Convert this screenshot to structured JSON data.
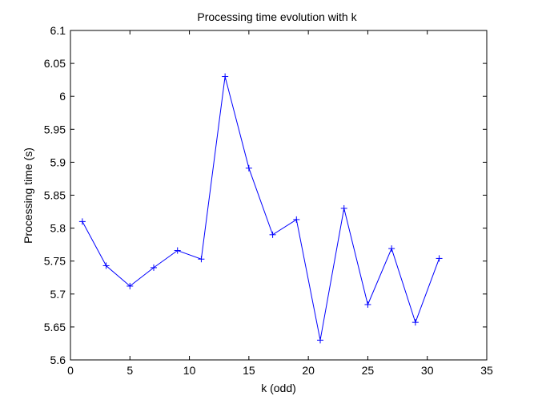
{
  "chart_data": {
    "type": "line",
    "title": "Processing time evolution with k",
    "xlabel": "k (odd)",
    "ylabel": "Processing time (s)",
    "xlim": [
      0,
      35
    ],
    "ylim": [
      5.6,
      6.1
    ],
    "xticks": [
      "0",
      "5",
      "10",
      "15",
      "20",
      "25",
      "30",
      "35"
    ],
    "yticks": [
      "5.6",
      "5.65",
      "5.7",
      "5.75",
      "5.8",
      "5.85",
      "5.9",
      "5.95",
      "6",
      "6.05",
      "6.1"
    ],
    "grid": false,
    "series": [
      {
        "color": "#0000ff",
        "marker": "+",
        "x": [
          1,
          3,
          5,
          7,
          9,
          11,
          13,
          15,
          17,
          19,
          21,
          23,
          25,
          27,
          29,
          31
        ],
        "y": [
          5.81,
          5.743,
          5.712,
          5.74,
          5.766,
          5.753,
          6.03,
          5.891,
          5.79,
          5.813,
          5.63,
          5.83,
          5.684,
          5.769,
          5.657,
          5.754
        ]
      }
    ]
  }
}
